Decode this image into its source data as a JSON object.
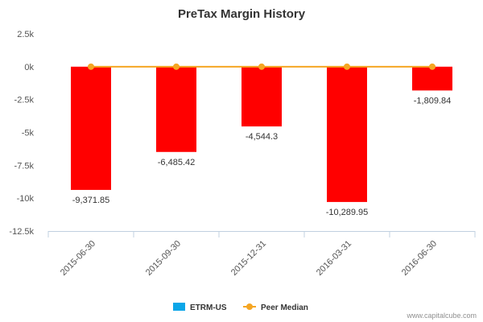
{
  "chart_data": {
    "type": "bar",
    "title": "PreTax Margin History",
    "categories": [
      "2015-06-30",
      "2015-09-30",
      "2015-12-31",
      "2016-03-31",
      "2016-06-30"
    ],
    "series": [
      {
        "name": "ETRM-US",
        "type": "bar",
        "values": [
          -9371.85,
          -6485.42,
          -4544.3,
          -10289.95,
          -1809.84
        ],
        "data_labels": [
          "-9,371.85",
          "-6,485.42",
          "-4,544.3",
          "-10,289.95",
          "-1,809.84"
        ],
        "color": "#ff0000",
        "legend_color": "#0ba6e8"
      },
      {
        "name": "Peer Median",
        "type": "line",
        "values": [
          0,
          0,
          0,
          0,
          0
        ],
        "color": "#f5a623"
      }
    ],
    "ylim": [
      -12500,
      2500
    ],
    "yticks": [
      2500,
      0,
      -2500,
      -5000,
      -7500,
      -10000,
      -12500
    ],
    "ytick_labels": [
      "2.5k",
      "0k",
      "-2.5k",
      "-5k",
      "-7.5k",
      "-10k",
      "-12.5k"
    ],
    "xlabel": "",
    "ylabel": "",
    "grid": false,
    "legend_position": "bottom-center"
  },
  "credit": "www.capitalcube.com"
}
